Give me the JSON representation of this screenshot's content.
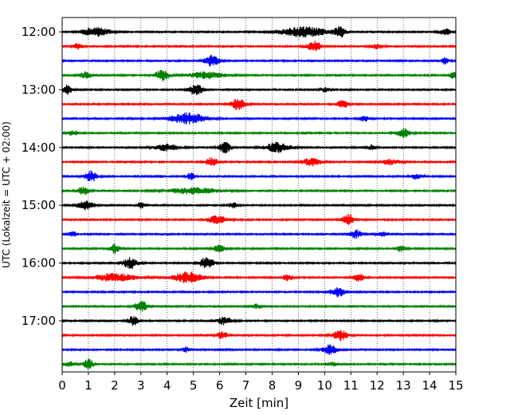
{
  "chart_data": {
    "type": "line",
    "title": "",
    "xlabel": "Zeit  [min]",
    "ylabel": "UTC (Lokalzeit = UTC + 02:00)",
    "xlim": [
      0,
      15
    ],
    "x_ticks": [
      "0",
      "1",
      "2",
      "3",
      "4",
      "5",
      "6",
      "7",
      "8",
      "9",
      "10",
      "11",
      "12",
      "13",
      "14",
      "15"
    ],
    "grid": "vertical dotted",
    "hour_labels": [
      "12:00",
      "13:00",
      "14:00",
      "15:00",
      "16:00",
      "17:00"
    ],
    "row_minutes": 15,
    "rows_per_hour": 4,
    "row_colors": [
      "#000000",
      "#ff0000",
      "#0000ff",
      "#008000"
    ],
    "series": [
      {
        "start": "12:00",
        "events": [
          [
            1.0,
            0.6,
            0.7
          ],
          [
            1.5,
            0.7,
            0.8
          ],
          [
            9.2,
            0.9,
            2.0
          ],
          [
            10.6,
            0.9,
            0.5
          ],
          [
            14.6,
            0.6,
            0.5
          ]
        ]
      },
      {
        "start": "12:15",
        "events": [
          [
            0.6,
            0.5,
            0.4
          ],
          [
            9.6,
            0.9,
            0.6
          ],
          [
            12.0,
            0.4,
            0.5
          ]
        ]
      },
      {
        "start": "12:30",
        "events": [
          [
            5.7,
            1.0,
            0.6
          ],
          [
            14.6,
            0.7,
            0.3
          ]
        ]
      },
      {
        "start": "12:45",
        "events": [
          [
            0.9,
            0.6,
            0.5
          ],
          [
            3.8,
            1.0,
            0.6
          ],
          [
            5.5,
            0.6,
            1.5
          ],
          [
            14.9,
            0.6,
            0.3
          ]
        ]
      },
      {
        "start": "13:00",
        "events": [
          [
            0.2,
            0.8,
            0.4
          ],
          [
            5.1,
            1.0,
            0.6
          ],
          [
            10.0,
            0.4,
            0.4
          ]
        ]
      },
      {
        "start": "13:15",
        "events": [
          [
            6.7,
            1.0,
            0.6
          ],
          [
            10.7,
            0.7,
            0.5
          ]
        ]
      },
      {
        "start": "13:30",
        "events": [
          [
            4.8,
            1.0,
            1.5
          ],
          [
            11.5,
            0.6,
            0.4
          ]
        ]
      },
      {
        "start": "13:45",
        "events": [
          [
            0.4,
            0.5,
            0.4
          ],
          [
            13.0,
            0.8,
            0.6
          ]
        ]
      },
      {
        "start": "14:00",
        "events": [
          [
            4.0,
            0.6,
            1.0
          ],
          [
            6.2,
            1.0,
            0.5
          ],
          [
            8.2,
            0.9,
            1.0
          ],
          [
            11.8,
            0.4,
            0.4
          ]
        ]
      },
      {
        "start": "14:15",
        "events": [
          [
            5.7,
            0.8,
            0.5
          ],
          [
            9.5,
            0.7,
            0.8
          ],
          [
            12.5,
            0.5,
            0.8
          ]
        ]
      },
      {
        "start": "14:30",
        "events": [
          [
            1.1,
            1.0,
            0.5
          ],
          [
            4.9,
            0.6,
            0.3
          ],
          [
            13.5,
            0.5,
            0.5
          ]
        ]
      },
      {
        "start": "14:45",
        "events": [
          [
            0.8,
            0.7,
            0.5
          ],
          [
            5.0,
            0.6,
            2.0
          ]
        ]
      },
      {
        "start": "15:00",
        "events": [
          [
            0.9,
            0.8,
            0.7
          ],
          [
            3.0,
            0.5,
            0.3
          ],
          [
            6.5,
            0.5,
            0.4
          ]
        ]
      },
      {
        "start": "15:15",
        "events": [
          [
            5.9,
            0.7,
            0.8
          ],
          [
            10.9,
            1.0,
            0.5
          ]
        ]
      },
      {
        "start": "15:30",
        "events": [
          [
            0.4,
            0.5,
            0.3
          ],
          [
            11.2,
            0.8,
            0.5
          ],
          [
            12.2,
            0.4,
            0.4
          ]
        ]
      },
      {
        "start": "15:45",
        "events": [
          [
            2.0,
            0.9,
            0.4
          ],
          [
            6.0,
            0.6,
            0.5
          ],
          [
            12.9,
            0.5,
            0.4
          ]
        ]
      },
      {
        "start": "16:00",
        "events": [
          [
            2.6,
            1.0,
            0.6
          ],
          [
            5.5,
            1.0,
            0.6
          ]
        ]
      },
      {
        "start": "16:15",
        "events": [
          [
            2.0,
            0.7,
            1.8
          ],
          [
            4.8,
            1.0,
            1.2
          ],
          [
            8.6,
            0.6,
            0.4
          ],
          [
            11.3,
            0.7,
            0.5
          ]
        ]
      },
      {
        "start": "16:30",
        "events": [
          [
            10.5,
            0.9,
            0.6
          ]
        ]
      },
      {
        "start": "16:45",
        "events": [
          [
            3.0,
            1.0,
            0.5
          ],
          [
            7.4,
            0.4,
            0.4
          ]
        ]
      },
      {
        "start": "17:00",
        "events": [
          [
            2.7,
            0.9,
            0.4
          ],
          [
            6.2,
            0.7,
            0.6
          ]
        ]
      },
      {
        "start": "17:15",
        "events": [
          [
            6.1,
            0.6,
            0.5
          ],
          [
            10.6,
            1.0,
            0.6
          ]
        ]
      },
      {
        "start": "17:30",
        "events": [
          [
            4.7,
            0.5,
            0.3
          ],
          [
            10.2,
            0.9,
            0.6
          ]
        ]
      },
      {
        "start": "17:45",
        "events": [
          [
            0.3,
            0.5,
            0.4
          ],
          [
            1.0,
            1.0,
            0.4
          ],
          [
            10.3,
            0.4,
            0.4
          ]
        ]
      }
    ]
  }
}
